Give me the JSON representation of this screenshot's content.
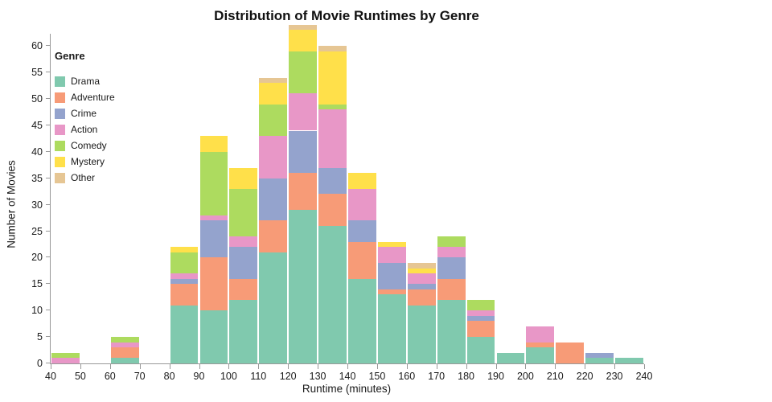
{
  "title": "Distribution of Movie Runtimes by Genre",
  "x_axis": {
    "label": "Runtime (minutes)",
    "ticks": [
      40,
      50,
      60,
      70,
      80,
      90,
      100,
      110,
      120,
      130,
      140,
      150,
      160,
      170,
      180,
      190,
      200,
      210,
      220,
      230,
      240
    ]
  },
  "y_axis": {
    "label": "Number of Movies",
    "ticks": [
      0,
      5,
      10,
      15,
      20,
      25,
      30,
      35,
      40,
      45,
      50,
      55,
      60
    ]
  },
  "legend": {
    "title": "Genre"
  },
  "chart_data": {
    "type": "bar",
    "subtype": "stacked-histogram",
    "title": "Distribution of Movie Runtimes by Genre",
    "xlabel": "Runtime (minutes)",
    "ylabel": "Number of Movies",
    "x_range": [
      40,
      240
    ],
    "y_range": [
      0,
      60
    ],
    "bin_width": 10,
    "grid": false,
    "legend_position": "top-left-inside",
    "bins": [
      40,
      50,
      60,
      70,
      80,
      90,
      100,
      110,
      120,
      130,
      140,
      150,
      160,
      170,
      180,
      190,
      200,
      210,
      220,
      230
    ],
    "series": [
      {
        "name": "Drama",
        "color": "#80c9ae",
        "values": [
          0,
          0,
          1,
          0,
          11,
          10,
          12,
          21,
          29,
          26,
          16,
          13,
          11,
          12,
          5,
          2,
          3,
          0,
          1,
          1
        ]
      },
      {
        "name": "Adventure",
        "color": "#f79b77",
        "values": [
          0,
          0,
          2,
          0,
          4,
          10,
          4,
          6,
          7,
          6,
          7,
          1,
          3,
          4,
          3,
          0,
          1,
          4,
          0,
          0
        ]
      },
      {
        "name": "Crime",
        "color": "#94a3cd",
        "values": [
          0,
          0,
          0,
          0,
          1,
          7,
          6,
          8,
          8,
          5,
          4,
          5,
          1,
          4,
          1,
          0,
          0,
          0,
          1,
          0
        ]
      },
      {
        "name": "Action",
        "color": "#e897c7",
        "values": [
          1,
          0,
          1,
          0,
          1,
          1,
          2,
          8,
          7,
          11,
          6,
          3,
          2,
          2,
          1,
          0,
          3,
          0,
          0,
          0
        ]
      },
      {
        "name": "Comedy",
        "color": "#addb5f",
        "values": [
          1,
          0,
          1,
          0,
          4,
          12,
          9,
          6,
          8,
          1,
          0,
          0,
          0,
          2,
          2,
          0,
          0,
          0,
          0,
          0
        ]
      },
      {
        "name": "Mystery",
        "color": "#ffe04a",
        "values": [
          0,
          0,
          0,
          0,
          1,
          3,
          4,
          4,
          4,
          10,
          3,
          1,
          1,
          0,
          0,
          0,
          0,
          0,
          0,
          0
        ]
      },
      {
        "name": "Other",
        "color": "#e6c694",
        "values": [
          0,
          0,
          0,
          0,
          0,
          0,
          0,
          1,
          1,
          1,
          0,
          0,
          1,
          0,
          0,
          0,
          0,
          0,
          0,
          0
        ]
      }
    ]
  }
}
